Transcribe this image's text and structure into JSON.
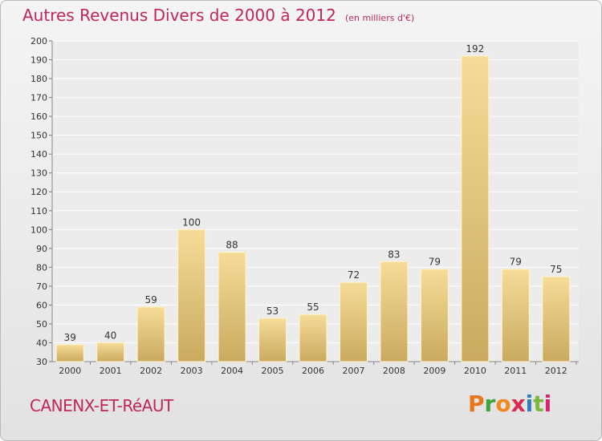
{
  "header": {
    "title": "Autres Revenus Divers de 2000 à 2012",
    "subtitle": "(en milliers d'€)"
  },
  "footer": {
    "place": "CANENX-ET-RéAUT",
    "brand": [
      "P",
      "r",
      "o",
      "x",
      "i",
      "t",
      "i"
    ]
  },
  "colors": {
    "title": "#c0265b",
    "bar_light": "#f6dc98",
    "bar_dark": "#c9aa5f",
    "brand": [
      "#e8761f",
      "#3fa33b",
      "#f08a1e",
      "#d92b4f",
      "#2f7ec1",
      "#7bb83a",
      "#d9236e"
    ]
  },
  "chart_data": {
    "type": "bar",
    "categories": [
      "2000",
      "2001",
      "2002",
      "2003",
      "2004",
      "2005",
      "2006",
      "2007",
      "2008",
      "2009",
      "2010",
      "2011",
      "2012"
    ],
    "values": [
      39,
      40,
      59,
      100,
      88,
      53,
      55,
      72,
      83,
      79,
      192,
      79,
      75
    ],
    "ylim": [
      30,
      200
    ],
    "yticks": [
      30,
      40,
      50,
      60,
      70,
      80,
      90,
      100,
      110,
      120,
      130,
      140,
      150,
      160,
      170,
      180,
      190,
      200
    ],
    "grid": true
  }
}
